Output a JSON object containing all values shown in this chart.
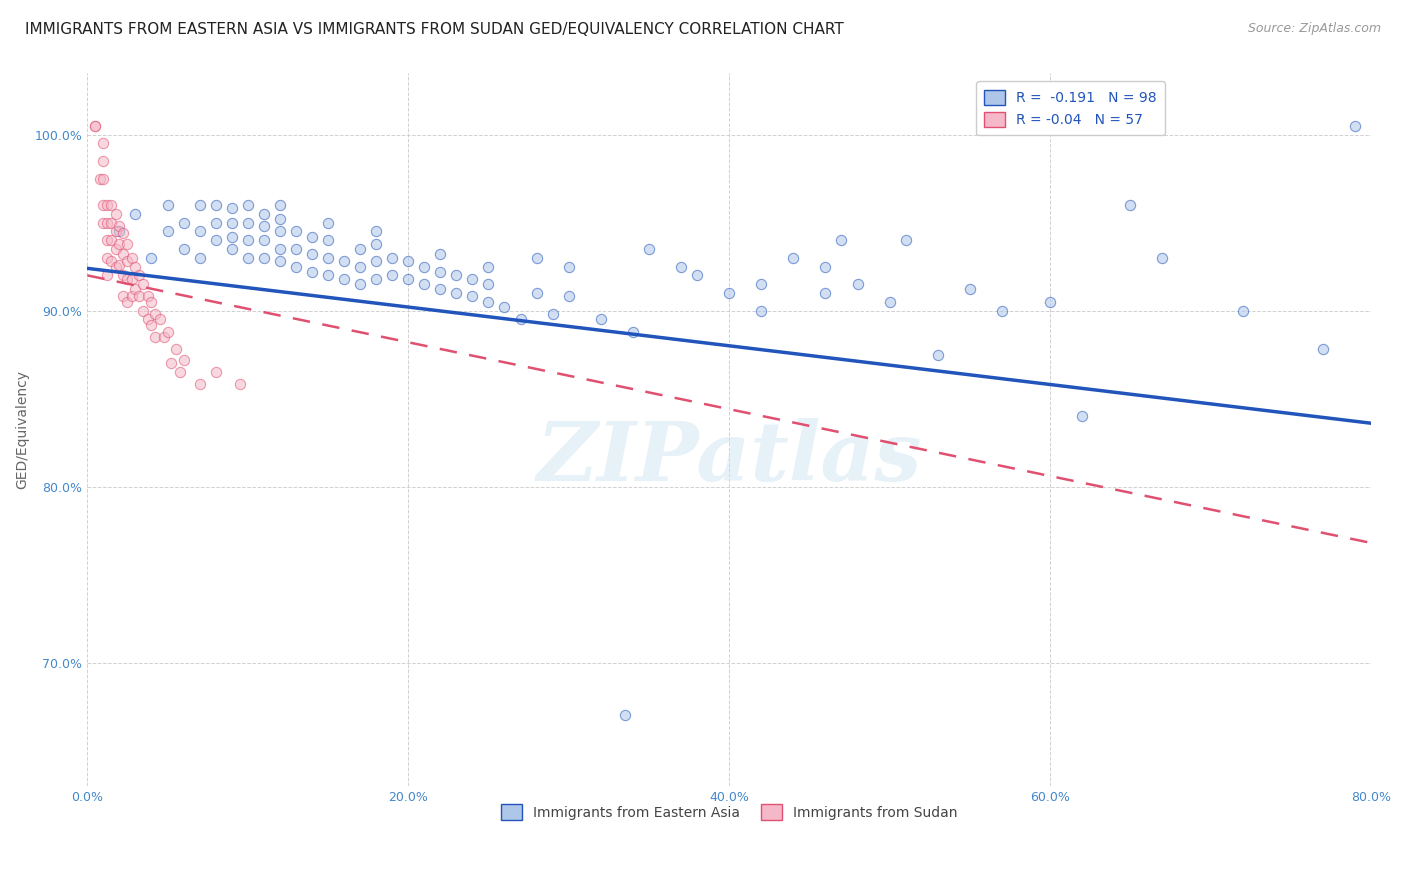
{
  "title": "IMMIGRANTS FROM EASTERN ASIA VS IMMIGRANTS FROM SUDAN GED/EQUIVALENCY CORRELATION CHART",
  "source": "Source: ZipAtlas.com",
  "ylabel": "GED/Equivalency",
  "legend_label_blue": "Immigrants from Eastern Asia",
  "legend_label_pink": "Immigrants from Sudan",
  "R_blue": -0.191,
  "N_blue": 98,
  "R_pink": -0.04,
  "N_pink": 57,
  "xlim": [
    0.0,
    0.8
  ],
  "ylim": [
    0.63,
    1.035
  ],
  "xtick_labels": [
    "0.0%",
    "20.0%",
    "40.0%",
    "60.0%",
    "80.0%"
  ],
  "xtick_vals": [
    0.0,
    0.2,
    0.4,
    0.6,
    0.8
  ],
  "ytick_labels": [
    "70.0%",
    "80.0%",
    "90.0%",
    "100.0%"
  ],
  "ytick_vals": [
    0.7,
    0.8,
    0.9,
    1.0
  ],
  "watermark": "ZIPatlas",
  "background_color": "#ffffff",
  "blue_dot_color": "#aec6e8",
  "pink_dot_color": "#f4b8c8",
  "blue_line_color": "#2255bb",
  "pink_line_color": "#e05070",
  "grid_color": "#cccccc",
  "blue_trend_x": [
    0.0,
    0.8
  ],
  "blue_trend_y": [
    0.924,
    0.836
  ],
  "pink_trend_x": [
    0.0,
    0.8
  ],
  "pink_trend_y": [
    0.92,
    0.768
  ],
  "blue_scatter_x": [
    0.02,
    0.03,
    0.04,
    0.05,
    0.05,
    0.06,
    0.06,
    0.07,
    0.07,
    0.07,
    0.08,
    0.08,
    0.08,
    0.09,
    0.09,
    0.09,
    0.09,
    0.1,
    0.1,
    0.1,
    0.1,
    0.11,
    0.11,
    0.11,
    0.11,
    0.12,
    0.12,
    0.12,
    0.12,
    0.12,
    0.13,
    0.13,
    0.13,
    0.14,
    0.14,
    0.14,
    0.15,
    0.15,
    0.15,
    0.15,
    0.16,
    0.16,
    0.17,
    0.17,
    0.17,
    0.18,
    0.18,
    0.18,
    0.18,
    0.19,
    0.19,
    0.2,
    0.2,
    0.21,
    0.21,
    0.22,
    0.22,
    0.22,
    0.23,
    0.23,
    0.24,
    0.24,
    0.25,
    0.25,
    0.25,
    0.26,
    0.27,
    0.28,
    0.28,
    0.29,
    0.3,
    0.3,
    0.32,
    0.34,
    0.35,
    0.37,
    0.38,
    0.4,
    0.42,
    0.42,
    0.44,
    0.46,
    0.46,
    0.47,
    0.48,
    0.5,
    0.51,
    0.53,
    0.55,
    0.57,
    0.6,
    0.62,
    0.65,
    0.67,
    0.335,
    0.72,
    0.77,
    0.79
  ],
  "blue_scatter_y": [
    0.945,
    0.955,
    0.93,
    0.945,
    0.96,
    0.935,
    0.95,
    0.93,
    0.945,
    0.96,
    0.94,
    0.95,
    0.96,
    0.935,
    0.942,
    0.95,
    0.958,
    0.93,
    0.94,
    0.95,
    0.96,
    0.93,
    0.94,
    0.948,
    0.955,
    0.928,
    0.935,
    0.945,
    0.952,
    0.96,
    0.925,
    0.935,
    0.945,
    0.922,
    0.932,
    0.942,
    0.92,
    0.93,
    0.94,
    0.95,
    0.918,
    0.928,
    0.915,
    0.925,
    0.935,
    0.918,
    0.928,
    0.938,
    0.945,
    0.92,
    0.93,
    0.918,
    0.928,
    0.915,
    0.925,
    0.912,
    0.922,
    0.932,
    0.91,
    0.92,
    0.908,
    0.918,
    0.905,
    0.915,
    0.925,
    0.902,
    0.895,
    0.93,
    0.91,
    0.898,
    0.908,
    0.925,
    0.895,
    0.888,
    0.935,
    0.925,
    0.92,
    0.91,
    0.9,
    0.915,
    0.93,
    0.91,
    0.925,
    0.94,
    0.915,
    0.905,
    0.94,
    0.875,
    0.912,
    0.9,
    0.905,
    0.84,
    0.96,
    0.93,
    0.67,
    0.9,
    0.878,
    1.005
  ],
  "pink_scatter_x": [
    0.005,
    0.005,
    0.008,
    0.01,
    0.01,
    0.01,
    0.01,
    0.01,
    0.012,
    0.012,
    0.012,
    0.012,
    0.012,
    0.015,
    0.015,
    0.015,
    0.015,
    0.018,
    0.018,
    0.018,
    0.018,
    0.02,
    0.02,
    0.02,
    0.022,
    0.022,
    0.022,
    0.022,
    0.025,
    0.025,
    0.025,
    0.025,
    0.028,
    0.028,
    0.028,
    0.03,
    0.03,
    0.032,
    0.032,
    0.035,
    0.035,
    0.038,
    0.038,
    0.04,
    0.04,
    0.042,
    0.042,
    0.045,
    0.048,
    0.05,
    0.052,
    0.055,
    0.058,
    0.06,
    0.07,
    0.08,
    0.095
  ],
  "pink_scatter_y": [
    1.005,
    1.005,
    0.975,
    0.995,
    0.985,
    0.975,
    0.96,
    0.95,
    0.96,
    0.95,
    0.94,
    0.93,
    0.92,
    0.96,
    0.95,
    0.94,
    0.928,
    0.955,
    0.945,
    0.935,
    0.925,
    0.948,
    0.938,
    0.926,
    0.944,
    0.932,
    0.92,
    0.908,
    0.938,
    0.928,
    0.918,
    0.905,
    0.93,
    0.918,
    0.908,
    0.925,
    0.912,
    0.92,
    0.908,
    0.915,
    0.9,
    0.908,
    0.895,
    0.905,
    0.892,
    0.898,
    0.885,
    0.895,
    0.885,
    0.888,
    0.87,
    0.878,
    0.865,
    0.872,
    0.858,
    0.865,
    0.858
  ],
  "title_fontsize": 11,
  "source_fontsize": 9,
  "axis_label_fontsize": 10,
  "tick_fontsize": 9,
  "legend_fontsize": 10,
  "dot_size": 55,
  "dot_alpha": 0.55,
  "dot_linewidth": 0.8
}
